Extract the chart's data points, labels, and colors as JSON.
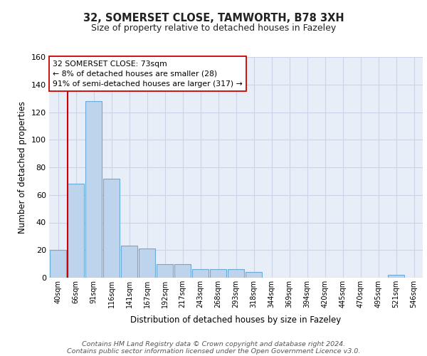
{
  "title1": "32, SOMERSET CLOSE, TAMWORTH, B78 3XH",
  "title2": "Size of property relative to detached houses in Fazeley",
  "xlabel": "Distribution of detached houses by size in Fazeley",
  "ylabel": "Number of detached properties",
  "bin_labels": [
    "40sqm",
    "66sqm",
    "91sqm",
    "116sqm",
    "141sqm",
    "167sqm",
    "192sqm",
    "217sqm",
    "243sqm",
    "268sqm",
    "293sqm",
    "318sqm",
    "344sqm",
    "369sqm",
    "394sqm",
    "420sqm",
    "445sqm",
    "470sqm",
    "495sqm",
    "521sqm",
    "546sqm"
  ],
  "bar_heights": [
    20,
    68,
    128,
    72,
    23,
    21,
    10,
    10,
    6,
    6,
    6,
    4,
    0,
    0,
    0,
    0,
    0,
    0,
    0,
    2,
    0
  ],
  "bar_color": "#bed3ec",
  "bar_edge_color": "#6aaad4",
  "red_line_color": "#cc0000",
  "annotation_line1": "32 SOMERSET CLOSE: 73sqm",
  "annotation_line2": "← 8% of detached houses are smaller (28)",
  "annotation_line3": "91% of semi-detached houses are larger (317) →",
  "ylim": [
    0,
    160
  ],
  "yticks": [
    0,
    20,
    40,
    60,
    80,
    100,
    120,
    140,
    160
  ],
  "grid_color": "#ccd5e8",
  "background_color": "#e8eef8",
  "footer_line1": "Contains HM Land Registry data © Crown copyright and database right 2024.",
  "footer_line2": "Contains public sector information licensed under the Open Government Licence v3.0."
}
